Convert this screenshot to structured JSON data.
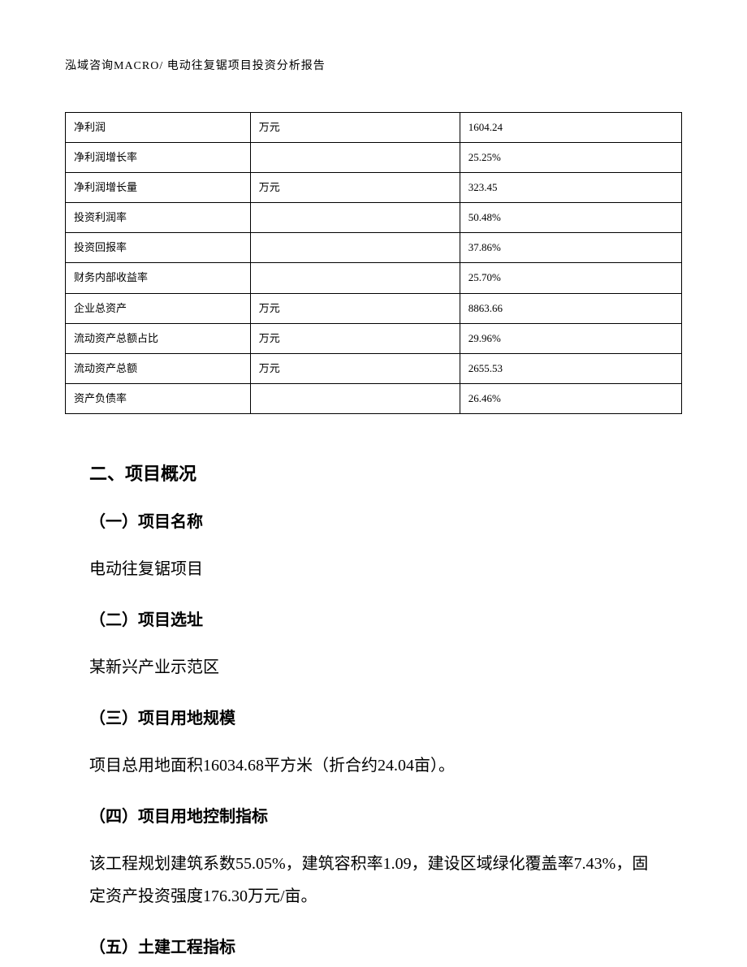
{
  "header": {
    "text": "泓域咨询MACRO/    电动往复锯项目投资分析报告"
  },
  "table": {
    "border_color": "#000000",
    "font_size_pt": 10,
    "columns": {
      "label_width_pct": 30,
      "unit_width_pct": 34,
      "value_width_pct": 36
    },
    "rows": [
      {
        "label": "净利润",
        "unit": "万元",
        "value": "1604.24"
      },
      {
        "label": "净利润增长率",
        "unit": "",
        "value": "25.25%"
      },
      {
        "label": "净利润增长量",
        "unit": "万元",
        "value": "323.45"
      },
      {
        "label": "投资利润率",
        "unit": "",
        "value": "50.48%"
      },
      {
        "label": "投资回报率",
        "unit": "",
        "value": "37.86%"
      },
      {
        "label": "财务内部收益率",
        "unit": "",
        "value": "25.70%"
      },
      {
        "label": "企业总资产",
        "unit": "万元",
        "value": "8863.66"
      },
      {
        "label": "流动资产总额占比",
        "unit": "万元",
        "value": "29.96%"
      },
      {
        "label": "流动资产总额",
        "unit": "万元",
        "value": "2655.53"
      },
      {
        "label": "资产负债率",
        "unit": "",
        "value": "26.46%"
      }
    ]
  },
  "content": {
    "section_title": "二、项目概况",
    "sub1_title": "（一）项目名称",
    "sub1_text": "电动往复锯项目",
    "sub2_title": "（二）项目选址",
    "sub2_text": "某新兴产业示范区",
    "sub3_title": "（三）项目用地规模",
    "sub3_text": "项目总用地面积16034.68平方米（折合约24.04亩）。",
    "sub4_title": "（四）项目用地控制指标",
    "sub4_text": "该工程规划建筑系数55.05%，建筑容积率1.09，建设区域绿化覆盖率7.43%，固定资产投资强度176.30万元/亩。",
    "sub5_title": "（五）土建工程指标"
  },
  "style": {
    "background_color": "#ffffff",
    "text_color": "#000000",
    "body_font_family": "SimSun",
    "heading_font_family": "SimHei",
    "table_font_size_pt": 10,
    "heading_font_size_pt": 16,
    "subheading_font_size_pt": 15,
    "body_font_size_pt": 15,
    "line_height": 2.0
  }
}
